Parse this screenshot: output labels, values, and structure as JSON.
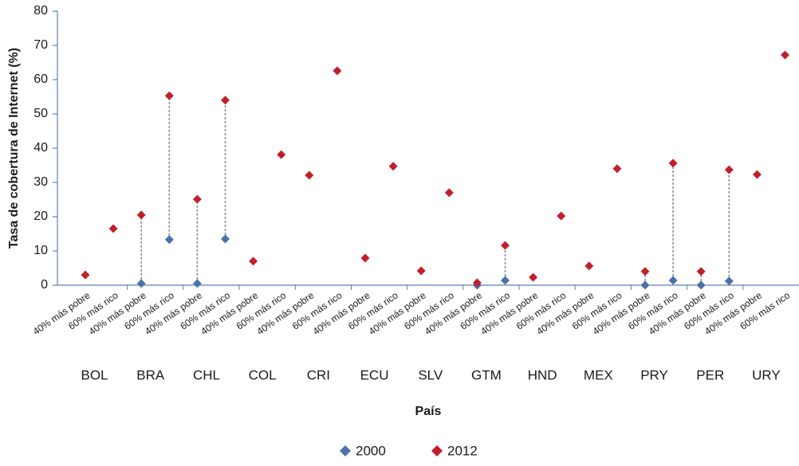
{
  "chart_data": {
    "type": "dot",
    "xlabel": "País",
    "ylabel": "Tasa de cobertura de Internet (%)",
    "categories": [
      "40% más pobre",
      "60% más rico",
      "40% más pobre",
      "60% más rico",
      "40% más pobre",
      "60% más rico",
      "40% más pobre",
      "60% más rico",
      "40% más pobre",
      "60% más rico",
      "40% más pobre",
      "60% más rico",
      "40% más pobre",
      "60% más rico",
      "40% más pobre",
      "60% más rico",
      "40% más pobre",
      "60% más rico",
      "40% más pobre",
      "60% más rico",
      "40% más pobre",
      "60% más rico",
      "40% más pobre",
      "60% más rico",
      "40% más pobre",
      "60% más rico"
    ],
    "groups": [
      "BOL",
      "BRA",
      "CHL",
      "COL",
      "CRI",
      "ECU",
      "SLV",
      "GTM",
      "HND",
      "MEX",
      "PRY",
      "PER",
      "URY"
    ],
    "series": [
      {
        "name": "2000",
        "color": "#4a72a8",
        "values": [
          null,
          null,
          0.5,
          13.3,
          0.5,
          13.5,
          null,
          null,
          null,
          null,
          null,
          null,
          null,
          null,
          0,
          1.4,
          null,
          null,
          null,
          null,
          0,
          1.4,
          0,
          1.2,
          null,
          null
        ]
      },
      {
        "name": "2012",
        "color": "#c0202a",
        "values": [
          3.0,
          16.5,
          20.5,
          55.3,
          25.1,
          54.0,
          7.0,
          38.1,
          32.1,
          62.6,
          7.9,
          34.7,
          4.2,
          27.0,
          0.7,
          11.6,
          2.3,
          20.2,
          5.6,
          34.0,
          4.0,
          35.6,
          4.0,
          33.7,
          32.3,
          67.2
        ]
      }
    ],
    "connect": true,
    "ylim": [
      0,
      80
    ],
    "yticks": [
      0,
      10,
      20,
      30,
      40,
      50,
      60,
      70,
      80
    ],
    "legend": "bottom"
  }
}
